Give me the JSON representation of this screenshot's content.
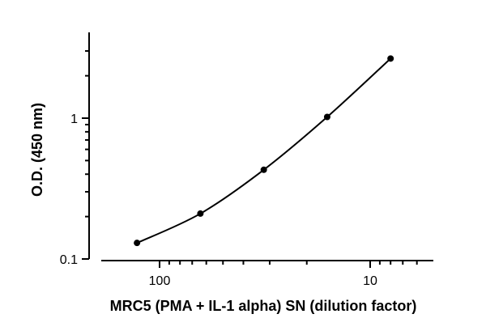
{
  "chart_data": {
    "type": "scatter",
    "xlabel": "MRC5 (PMA + IL-1 alpha) SN (dilution factor)",
    "ylabel": "O.D. (450 nm)",
    "x_scale": "log",
    "x_reversed": true,
    "y_scale": "log",
    "xlim": [
      135,
      5
    ],
    "ylim": [
      0.1,
      3.5
    ],
    "x_ticks": [
      {
        "value": 100,
        "label": "100"
      },
      {
        "value": 10,
        "label": "10"
      }
    ],
    "y_ticks": [
      {
        "value": 1,
        "label": "1"
      },
      {
        "value": 0.1,
        "label": "0.1"
      }
    ],
    "grid": false,
    "fit_line": true,
    "series": [
      {
        "x": [
          128,
          64,
          32,
          16,
          8
        ],
        "y": [
          0.13,
          0.21,
          0.43,
          1.02,
          2.65
        ]
      }
    ]
  }
}
